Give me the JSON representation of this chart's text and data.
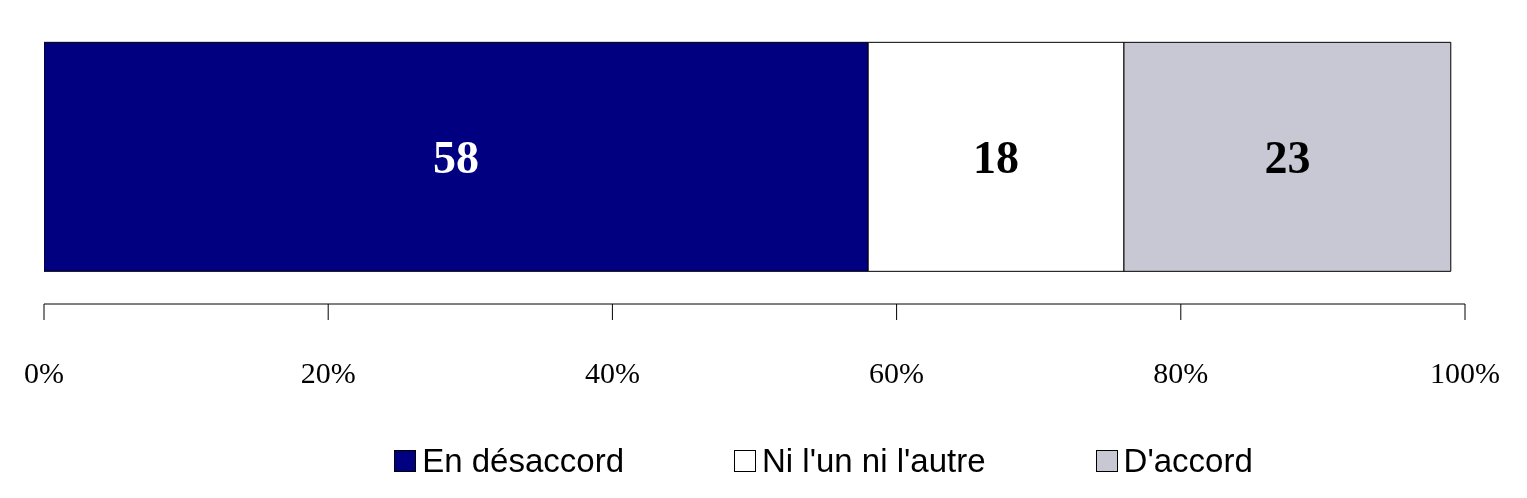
{
  "chart_data": {
    "type": "bar",
    "orientation": "horizontal",
    "stacked": true,
    "categories": [
      null
    ],
    "series": [
      {
        "name": "En désaccord",
        "color": "#000080",
        "values": [
          58
        ]
      },
      {
        "name": "Ni l'un ni l'autre",
        "color": "#ffffff",
        "values": [
          18
        ]
      },
      {
        "name": "D'accord",
        "color": "#c8c8d4",
        "values": [
          23
        ]
      }
    ],
    "xlim": [
      0,
      100
    ],
    "xticks": [
      {
        "value": 0,
        "label": "0%"
      },
      {
        "value": 20,
        "label": "20%"
      },
      {
        "value": 40,
        "label": "40%"
      },
      {
        "value": 60,
        "label": "60%"
      },
      {
        "value": 80,
        "label": "80%"
      },
      {
        "value": 100,
        "label": "100%"
      }
    ],
    "data_labels": true,
    "legend": "bottom",
    "grid": false
  }
}
